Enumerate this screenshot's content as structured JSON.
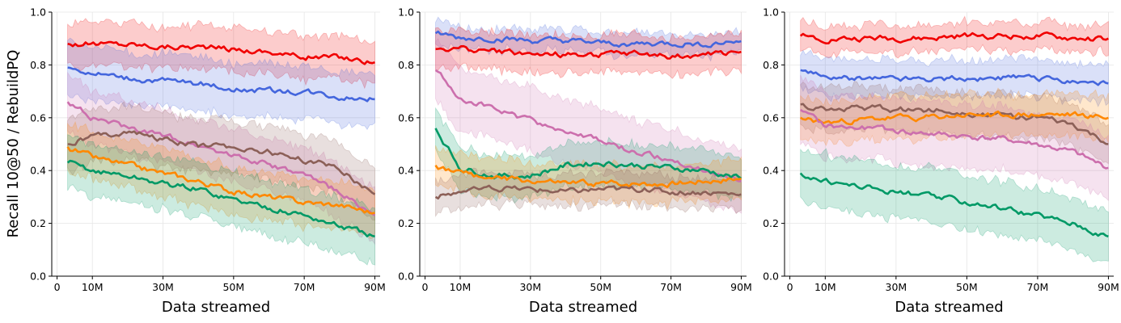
{
  "figure": {
    "ylabel": "Recall 10@50 / RebuildPQ",
    "colors": {
      "red": "#f00000",
      "blue": "#4466dd",
      "pink": "#cc6fad",
      "brown": "#8c6058",
      "orange": "#ff8800",
      "green": "#009966"
    }
  },
  "chart_data": [
    {
      "type": "line",
      "panel": "left",
      "xlabel": "Data streamed",
      "xlim": [
        -1.5,
        91.5
      ],
      "ylim": [
        0,
        1
      ],
      "xticks": [
        0,
        10,
        30,
        50,
        70,
        90
      ],
      "xtick_labels": [
        "0",
        "10M",
        "30M",
        "50M",
        "70M",
        "90M"
      ],
      "yticks": [
        0.0,
        0.2,
        0.4,
        0.6,
        0.8,
        1.0
      ],
      "ytick_labels": [
        "0.0",
        "0.2",
        "0.4",
        "0.6",
        "0.8",
        "1.0"
      ],
      "grid": true,
      "x": [
        3,
        10,
        20,
        30,
        40,
        50,
        60,
        70,
        80,
        90
      ],
      "series": [
        {
          "name": "red",
          "color_key": "red",
          "values": [
            0.88,
            0.88,
            0.88,
            0.87,
            0.87,
            0.86,
            0.85,
            0.83,
            0.83,
            0.81
          ],
          "band_width": 0.08
        },
        {
          "name": "blue",
          "color_key": "blue",
          "values": [
            0.79,
            0.77,
            0.75,
            0.74,
            0.73,
            0.71,
            0.7,
            0.7,
            0.68,
            0.67
          ],
          "band_width": 0.1
        },
        {
          "name": "pink",
          "color_key": "pink",
          "values": [
            0.66,
            0.6,
            0.56,
            0.53,
            0.5,
            0.46,
            0.42,
            0.38,
            0.32,
            0.23
          ],
          "band_width": 0.1
        },
        {
          "name": "brown",
          "color_key": "brown",
          "values": [
            0.5,
            0.53,
            0.55,
            0.52,
            0.49,
            0.49,
            0.47,
            0.44,
            0.41,
            0.31
          ],
          "band_width": 0.1
        },
        {
          "name": "orange",
          "color_key": "orange",
          "values": [
            0.49,
            0.45,
            0.42,
            0.39,
            0.36,
            0.32,
            0.3,
            0.28,
            0.27,
            0.24
          ],
          "band_width": 0.09
        },
        {
          "name": "green",
          "color_key": "green",
          "values": [
            0.43,
            0.4,
            0.38,
            0.35,
            0.33,
            0.29,
            0.26,
            0.23,
            0.19,
            0.15
          ],
          "band_width": 0.1
        }
      ]
    },
    {
      "type": "line",
      "panel": "middle",
      "xlabel": "Data streamed",
      "xlim": [
        -1.5,
        91.5
      ],
      "ylim": [
        0,
        1
      ],
      "xticks": [
        0,
        10,
        30,
        50,
        70,
        90
      ],
      "xtick_labels": [
        "0",
        "10M",
        "30M",
        "50M",
        "70M",
        "90M"
      ],
      "yticks": [
        0.0,
        0.2,
        0.4,
        0.6,
        0.8,
        1.0
      ],
      "ytick_labels": [
        "0.0",
        "0.2",
        "0.4",
        "0.6",
        "0.8",
        "1.0"
      ],
      "grid": true,
      "x": [
        3,
        10,
        20,
        30,
        40,
        50,
        60,
        70,
        80,
        90
      ],
      "series": [
        {
          "name": "blue",
          "color_key": "blue",
          "values": [
            0.92,
            0.9,
            0.9,
            0.89,
            0.89,
            0.88,
            0.88,
            0.88,
            0.88,
            0.89
          ],
          "band_width": 0.04
        },
        {
          "name": "red",
          "color_key": "red",
          "values": [
            0.86,
            0.86,
            0.85,
            0.84,
            0.84,
            0.84,
            0.84,
            0.83,
            0.84,
            0.85
          ],
          "band_width": 0.07
        },
        {
          "name": "pink",
          "color_key": "pink",
          "values": [
            0.78,
            0.68,
            0.63,
            0.59,
            0.55,
            0.51,
            0.47,
            0.44,
            0.4,
            0.36
          ],
          "band_width": 0.12
        },
        {
          "name": "green",
          "color_key": "green",
          "values": [
            0.56,
            0.41,
            0.38,
            0.38,
            0.42,
            0.43,
            0.42,
            0.41,
            0.4,
            0.37
          ],
          "band_width": 0.08
        },
        {
          "name": "orange",
          "color_key": "orange",
          "values": [
            0.42,
            0.39,
            0.37,
            0.36,
            0.35,
            0.35,
            0.35,
            0.35,
            0.36,
            0.37
          ],
          "band_width": 0.07
        },
        {
          "name": "brown",
          "color_key": "brown",
          "values": [
            0.3,
            0.32,
            0.33,
            0.33,
            0.32,
            0.33,
            0.33,
            0.32,
            0.32,
            0.31
          ],
          "band_width": 0.06
        }
      ]
    },
    {
      "type": "line",
      "panel": "right",
      "xlabel": "Data streamed",
      "xlim": [
        -1.5,
        91.5
      ],
      "ylim": [
        0,
        1
      ],
      "xticks": [
        0,
        10,
        30,
        50,
        70,
        90
      ],
      "xtick_labels": [
        "0",
        "10M",
        "30M",
        "50M",
        "70M",
        "90M"
      ],
      "yticks": [
        0.0,
        0.2,
        0.4,
        0.6,
        0.8,
        1.0
      ],
      "ytick_labels": [
        "0.0",
        "0.2",
        "0.4",
        "0.6",
        "0.8",
        "1.0"
      ],
      "grid": true,
      "x": [
        3,
        10,
        20,
        30,
        40,
        50,
        60,
        70,
        80,
        90
      ],
      "series": [
        {
          "name": "red",
          "color_key": "red",
          "values": [
            0.91,
            0.9,
            0.9,
            0.9,
            0.9,
            0.91,
            0.91,
            0.91,
            0.9,
            0.9
          ],
          "band_width": 0.05
        },
        {
          "name": "blue",
          "color_key": "blue",
          "values": [
            0.78,
            0.75,
            0.75,
            0.75,
            0.75,
            0.75,
            0.75,
            0.75,
            0.74,
            0.73
          ],
          "band_width": 0.07
        },
        {
          "name": "brown",
          "color_key": "brown",
          "values": [
            0.65,
            0.63,
            0.64,
            0.63,
            0.63,
            0.62,
            0.61,
            0.6,
            0.57,
            0.5
          ],
          "band_width": 0.08
        },
        {
          "name": "orange",
          "color_key": "orange",
          "values": [
            0.6,
            0.58,
            0.59,
            0.6,
            0.6,
            0.61,
            0.61,
            0.61,
            0.61,
            0.6
          ],
          "band_width": 0.08
        },
        {
          "name": "pink",
          "color_key": "pink",
          "values": [
            0.63,
            0.57,
            0.56,
            0.55,
            0.54,
            0.53,
            0.52,
            0.5,
            0.47,
            0.41
          ],
          "band_width": 0.12
        },
        {
          "name": "green",
          "color_key": "green",
          "values": [
            0.39,
            0.36,
            0.34,
            0.32,
            0.3,
            0.28,
            0.26,
            0.23,
            0.2,
            0.15
          ],
          "band_width": 0.1
        }
      ]
    }
  ]
}
